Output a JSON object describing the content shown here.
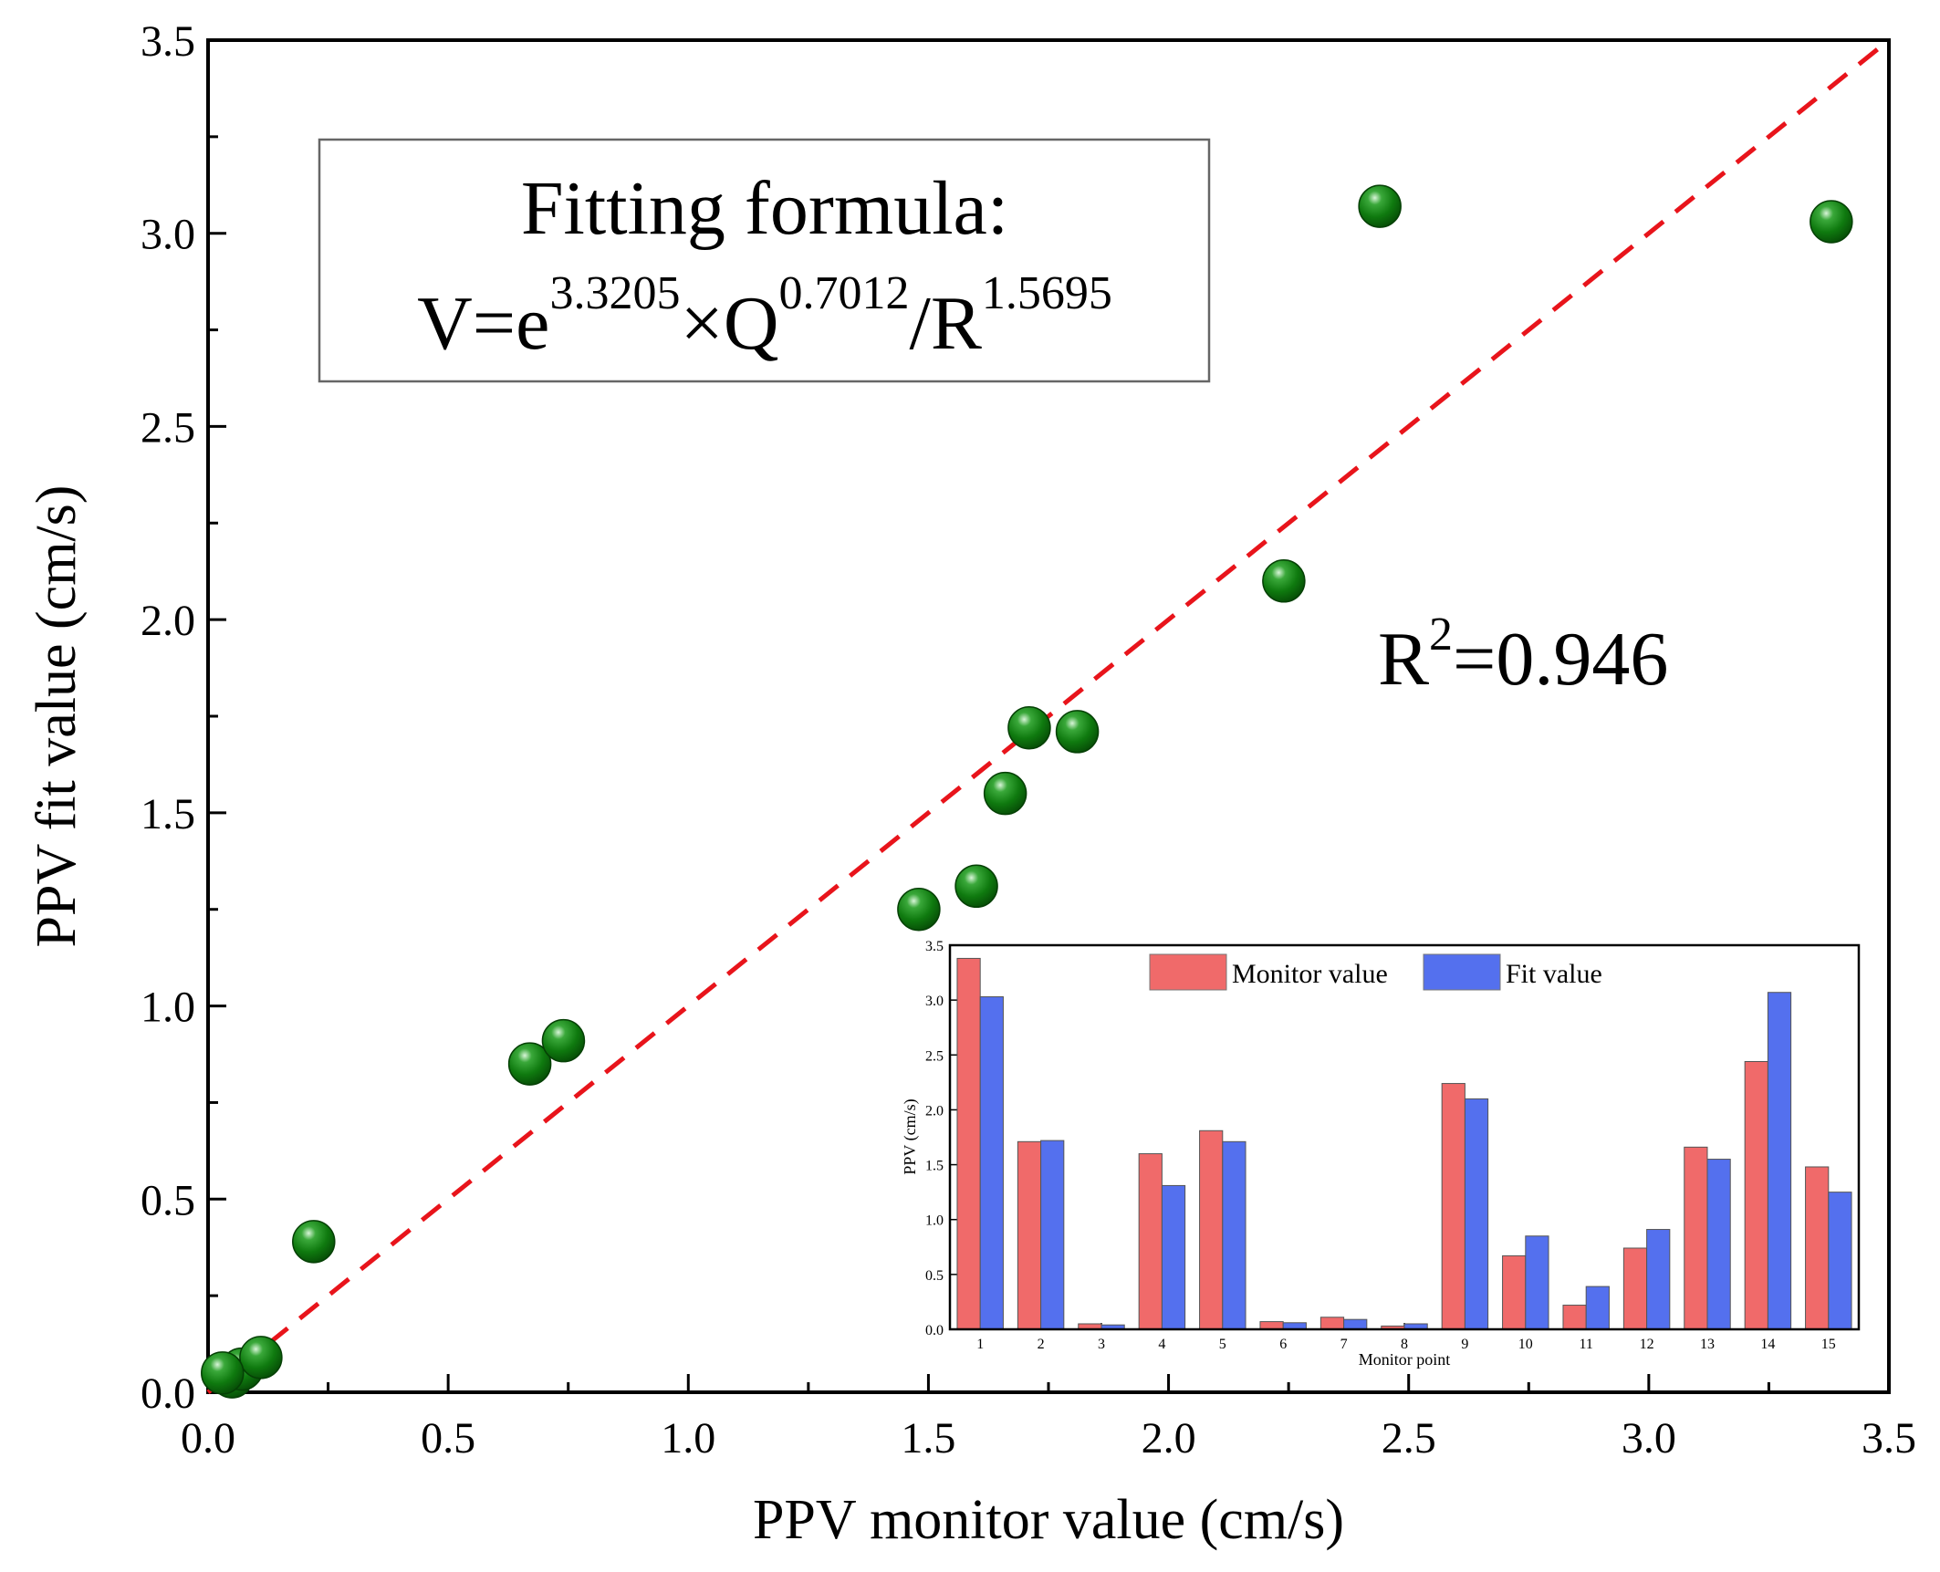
{
  "colors": {
    "points": "#0f7a0f",
    "point_highlight": "#d8f5d8",
    "diagonal": "#e8141b",
    "bar_monitor": "#f06a6a",
    "bar_fit": "#5470ee"
  },
  "chart_data": [
    {
      "type": "scatter",
      "title": "",
      "xlabel": "PPV monitor value (cm/s)",
      "ylabel": "PPV fit value (cm/s)",
      "xlim": [
        0,
        3.5
      ],
      "ylim": [
        0,
        3.5
      ],
      "xticks": [
        0.0,
        0.5,
        1.0,
        1.5,
        2.0,
        2.5,
        3.0,
        3.5
      ],
      "yticks": [
        0.0,
        0.5,
        1.0,
        1.5,
        2.0,
        2.5,
        3.0,
        3.5
      ],
      "xtick_labels": [
        "0.0",
        "0.5",
        "1.0",
        "1.5",
        "2.0",
        "2.5",
        "3.0",
        "3.5"
      ],
      "ytick_labels": [
        "0.0",
        "0.5",
        "1.0",
        "1.5",
        "2.0",
        "2.5",
        "3.0",
        "3.5"
      ],
      "grid": false,
      "reference_line": {
        "style": "dashed",
        "from": [
          0,
          0
        ],
        "to": [
          3.5,
          3.5
        ]
      },
      "points": [
        {
          "x": 3.38,
          "y": 3.03
        },
        {
          "x": 1.71,
          "y": 1.72
        },
        {
          "x": 0.05,
          "y": 0.04
        },
        {
          "x": 1.6,
          "y": 1.31
        },
        {
          "x": 1.81,
          "y": 1.71
        },
        {
          "x": 0.07,
          "y": 0.06
        },
        {
          "x": 0.11,
          "y": 0.09
        },
        {
          "x": 0.03,
          "y": 0.05
        },
        {
          "x": 2.24,
          "y": 2.1
        },
        {
          "x": 0.67,
          "y": 0.85
        },
        {
          "x": 0.22,
          "y": 0.39
        },
        {
          "x": 0.74,
          "y": 0.91
        },
        {
          "x": 1.66,
          "y": 1.55
        },
        {
          "x": 2.44,
          "y": 3.07
        },
        {
          "x": 1.48,
          "y": 1.25
        }
      ],
      "annotations": {
        "formula_title": "Fitting formula:",
        "formula": {
          "lhs": "V=e",
          "exp1": "3.3205",
          "times": "×Q",
          "exp2": "0.7012",
          "div": "/R",
          "exp3": "1.5695"
        },
        "r2": {
          "base": "R",
          "sup": "2",
          "value": "=0.946"
        }
      }
    },
    {
      "type": "bar",
      "title": "",
      "xlabel": "Monitor point",
      "ylabel": "PPV (cm/s)",
      "ylim": [
        0,
        3.5
      ],
      "yticks": [
        0.0,
        0.5,
        1.0,
        1.5,
        2.0,
        2.5,
        3.0,
        3.5
      ],
      "ytick_labels": [
        "0.0",
        "0.5",
        "1.0",
        "1.5",
        "2.0",
        "2.5",
        "3.0",
        "3.5"
      ],
      "categories": [
        "1",
        "2",
        "3",
        "4",
        "5",
        "6",
        "7",
        "8",
        "9",
        "10",
        "11",
        "12",
        "13",
        "14",
        "15"
      ],
      "legend_position": "top-center",
      "series": [
        {
          "name": "Monitor value",
          "values": [
            3.38,
            1.71,
            0.05,
            1.6,
            1.81,
            0.07,
            0.11,
            0.03,
            2.24,
            0.67,
            0.22,
            0.74,
            1.66,
            2.44,
            1.48
          ]
        },
        {
          "name": "Fit value",
          "values": [
            3.03,
            1.72,
            0.04,
            1.31,
            1.71,
            0.06,
            0.09,
            0.05,
            2.1,
            0.85,
            0.39,
            0.91,
            1.55,
            3.07,
            1.25
          ]
        }
      ]
    }
  ]
}
